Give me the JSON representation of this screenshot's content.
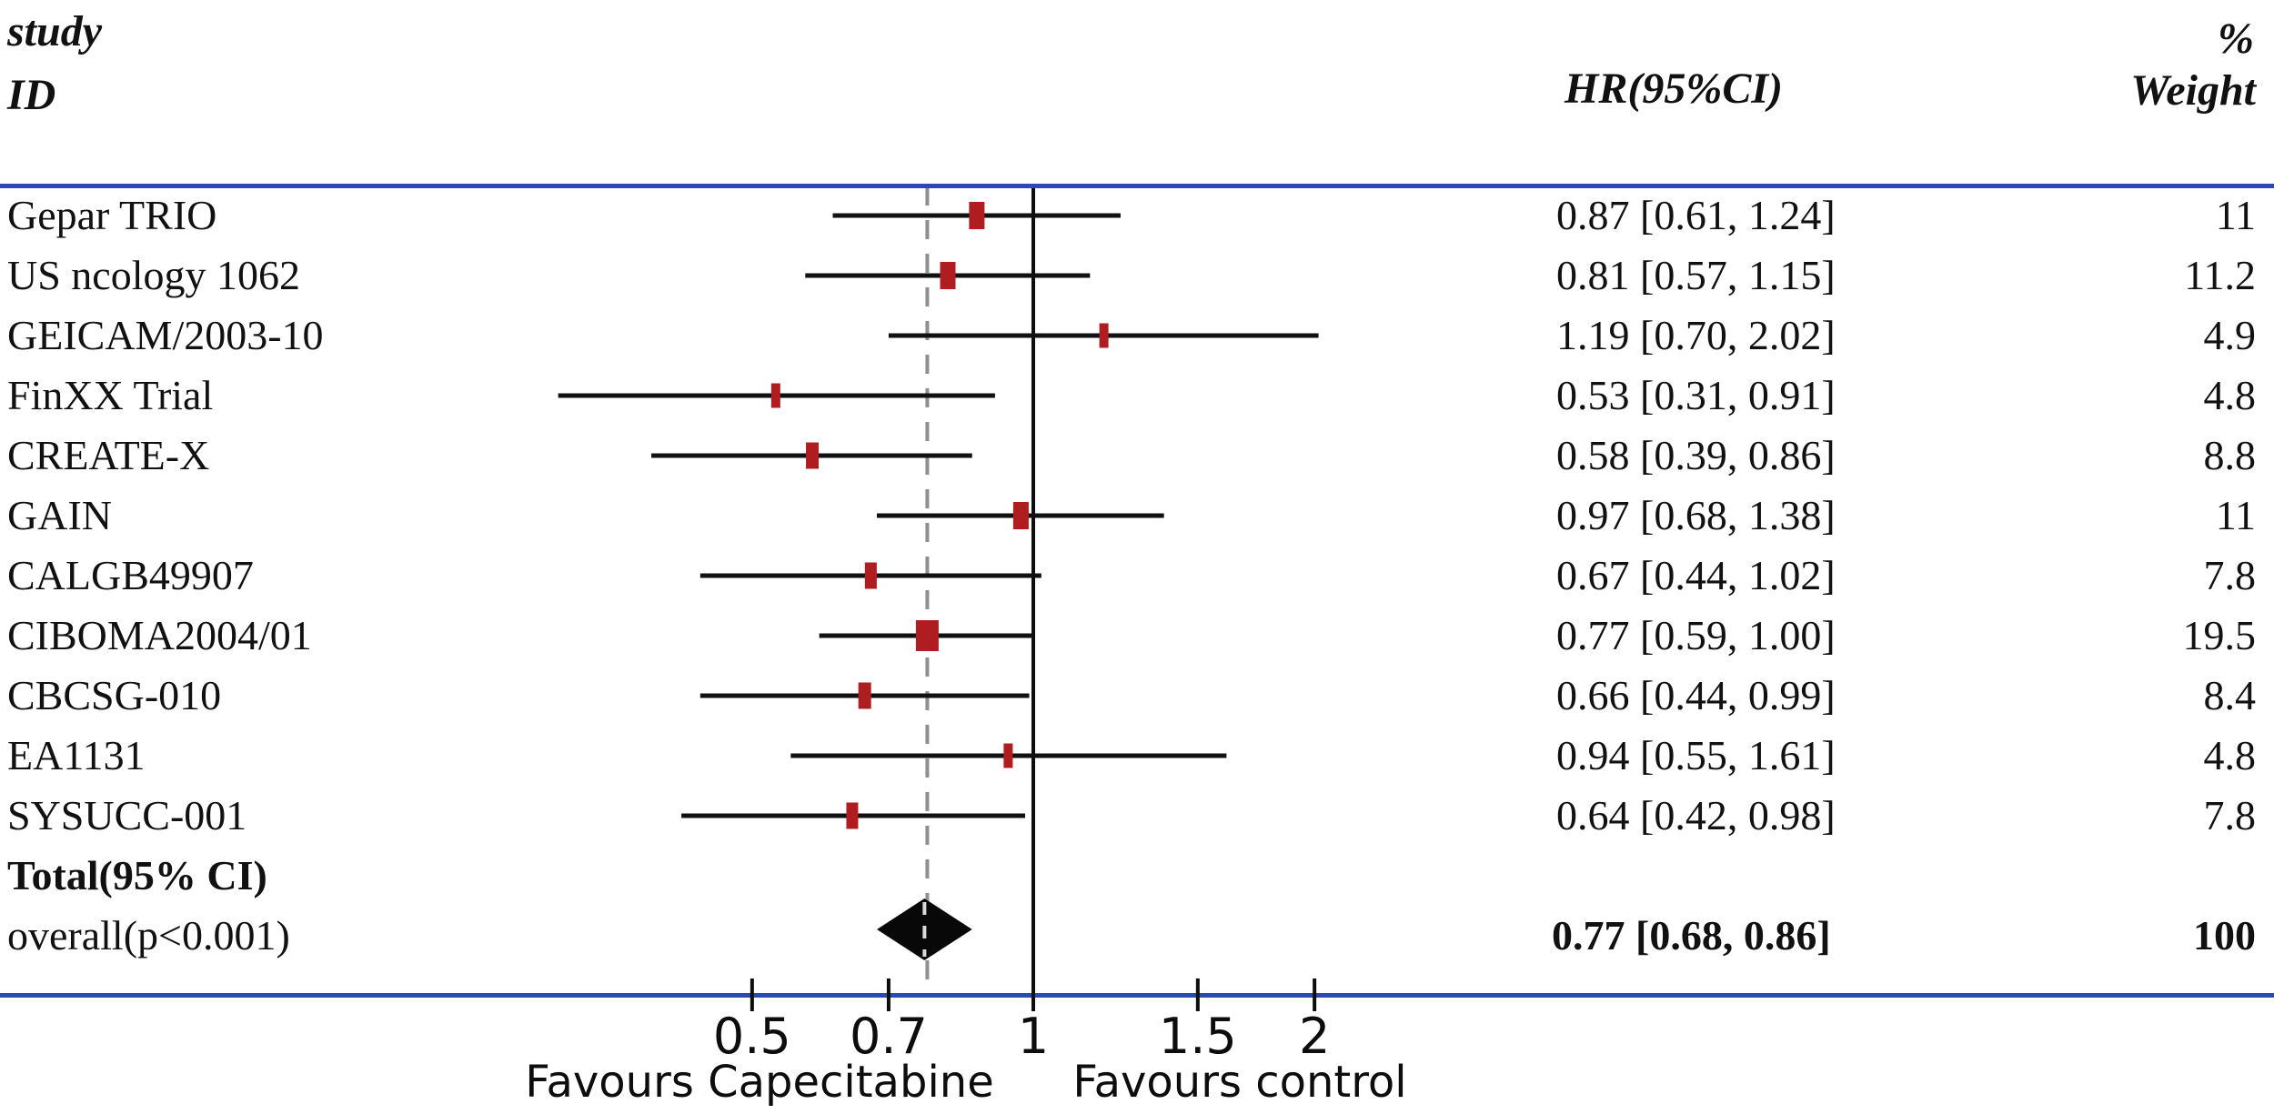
{
  "header": {
    "col_study_line1": "study",
    "col_study_line2": "ID",
    "col_hr": "HR(95%CI)",
    "col_pct": "%",
    "col_weight": "Weight"
  },
  "colors": {
    "rule_blue": "#2b49b7",
    "ci_line": "#111111",
    "marker_red": "#b01d20",
    "ref_line": "#0d0d0d",
    "dashed_grey": "#8f8f8f",
    "diamond_black": "#080808"
  },
  "chart_data": {
    "type": "forest",
    "x_scale": "log",
    "x_ticks": [
      0.5,
      0.7,
      1,
      1.5,
      2
    ],
    "x_tick_labels": [
      "0.5",
      "0.7",
      "1",
      "1.5",
      "2"
    ],
    "x_range": [
      0.28,
      2.3
    ],
    "reference_line": 1,
    "pooled_dashed_line": 0.77,
    "xlabel_left": "Favours Capecitabine",
    "xlabel_right": "Favours control",
    "studies": [
      {
        "id": "Gepar TRIO",
        "hr": 0.87,
        "ci": [
          0.61,
          1.24
        ],
        "weight": 11,
        "hr_label": "0.87 [0.61, 1.24]",
        "weight_label": "11"
      },
      {
        "id": "US ncology 1062",
        "hr": 0.81,
        "ci": [
          0.57,
          1.15
        ],
        "weight": 11.2,
        "hr_label": "0.81 [0.57, 1.15]",
        "weight_label": "11.2"
      },
      {
        "id": "GEICAM/2003-10",
        "hr": 1.19,
        "ci": [
          0.7,
          2.02
        ],
        "weight": 4.9,
        "hr_label": "1.19 [0.70, 2.02]",
        "weight_label": "4.9"
      },
      {
        "id": "FinXX Trial",
        "hr": 0.53,
        "ci": [
          0.31,
          0.91
        ],
        "weight": 4.8,
        "hr_label": "0.53 [0.31, 0.91]",
        "weight_label": "4.8"
      },
      {
        "id": "CREATE-X",
        "hr": 0.58,
        "ci": [
          0.39,
          0.86
        ],
        "weight": 8.8,
        "hr_label": "0.58 [0.39, 0.86]",
        "weight_label": "8.8"
      },
      {
        "id": "GAIN",
        "hr": 0.97,
        "ci": [
          0.68,
          1.38
        ],
        "weight": 11,
        "hr_label": "0.97 [0.68, 1.38]",
        "weight_label": "11"
      },
      {
        "id": "CALGB49907",
        "hr": 0.67,
        "ci": [
          0.44,
          1.02
        ],
        "weight": 7.8,
        "hr_label": "0.67 [0.44, 1.02]",
        "weight_label": "7.8"
      },
      {
        "id": "CIBOMA2004/01",
        "hr": 0.77,
        "ci": [
          0.59,
          1.0
        ],
        "weight": 19.5,
        "hr_label": "0.77 [0.59, 1.00]",
        "weight_label": "19.5"
      },
      {
        "id": "CBCSG-010",
        "hr": 0.66,
        "ci": [
          0.44,
          0.99
        ],
        "weight": 8.4,
        "hr_label": "0.66 [0.44, 0.99]",
        "weight_label": "8.4"
      },
      {
        "id": "EA1131",
        "hr": 0.94,
        "ci": [
          0.55,
          1.61
        ],
        "weight": 4.8,
        "hr_label": "0.94 [0.55, 1.61]",
        "weight_label": "4.8"
      },
      {
        "id": "SYSUCC-001",
        "hr": 0.64,
        "ci": [
          0.42,
          0.98
        ],
        "weight": 7.8,
        "hr_label": "0.64 [0.42, 0.98]",
        "weight_label": "7.8"
      }
    ],
    "overall": {
      "total_label": "Total(95% CI)",
      "overall_label": "overall(p<0.001)",
      "hr": 0.77,
      "ci": [
        0.68,
        0.86
      ],
      "weight": 100,
      "hr_label": "0.77 [0.68, 0.86]",
      "weight_label": "100"
    }
  }
}
